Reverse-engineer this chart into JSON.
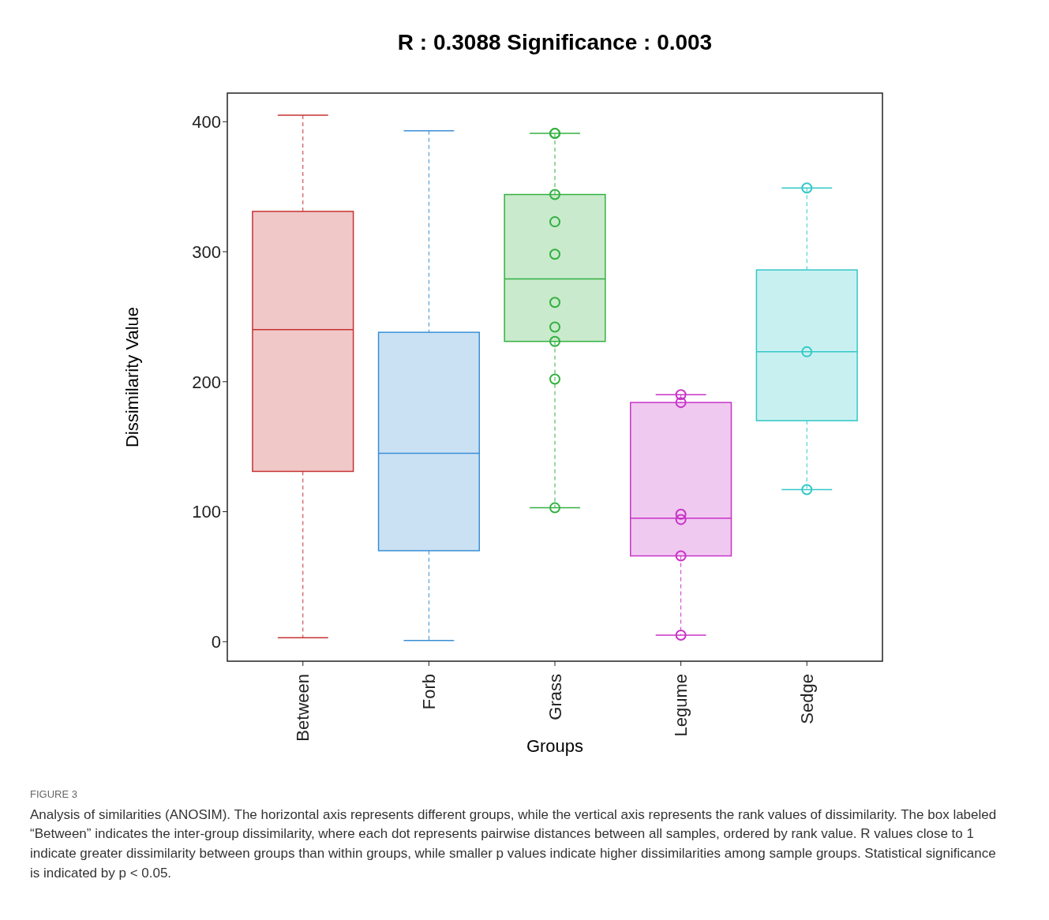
{
  "chart_data": {
    "type": "box",
    "title": "R : 0.3088  Significance : 0.003",
    "xlabel": "Groups",
    "ylabel": "Dissimilarity Value",
    "categories": [
      "Between",
      "Forb",
      "Grass",
      "Legume",
      "Sedge"
    ],
    "ylim": [
      -15,
      422
    ],
    "yticks": [
      0,
      100,
      200,
      300,
      400
    ],
    "line_style": "dashed",
    "series": [
      {
        "colors": [
          "#c83232",
          "#3a8fd6",
          "#33b040",
          "#c833c8",
          "#33c8c8"
        ],
        "boxes": [
          {
            "low": 3,
            "q1": 131,
            "median": 240,
            "q3": 331,
            "high": 405
          },
          {
            "low": 1,
            "q1": 70,
            "median": 145,
            "q3": 238,
            "high": 393
          },
          {
            "low": 103,
            "q1": 231,
            "median": 279,
            "q3": 344,
            "high": 391
          },
          {
            "low": 5,
            "q1": 66,
            "median": 95,
            "q3": 184,
            "high": 190
          },
          {
            "low": 117,
            "q1": 170,
            "median": 223,
            "q3": 286,
            "high": 349
          }
        ]
      },
      {
        "type": "scatter",
        "color": "#33b040",
        "marker": "circle",
        "x": [
          "Grass",
          "Grass",
          "Grass",
          "Grass",
          "Grass",
          "Grass",
          "Grass",
          "Grass",
          "Grass",
          "Grass"
        ],
        "values": [
          391,
          391,
          344,
          323,
          298,
          261,
          242,
          231,
          202,
          103
        ]
      },
      {
        "type": "scatter",
        "color": "#c833c8",
        "marker": "circle",
        "x": [
          "Legume",
          "Legume",
          "Legume",
          "Legume",
          "Legume",
          "Legume"
        ],
        "values": [
          190,
          184,
          98,
          94,
          66,
          5
        ]
      },
      {
        "type": "scatter",
        "color": "#33c8c8",
        "marker": "circle",
        "x": [
          "Sedge",
          "Sedge",
          "Sedge"
        ],
        "values": [
          349,
          223,
          117
        ]
      }
    ],
    "annotations": [
      "FIGURE 3",
      "Analysis of similarities (ANOSIM). The horizontal axis represents different groups, while the vertical axis represents the rank values of dissimilarity. The box labeled “Between” indicates the inter-group dissimilarity, where each dot represents pairwise distances between all samples, ordered by rank value. R values close to 1 indicate greater dissimilarity between groups than within groups, while smaller p values indicate higher dissimilarities among sample groups. Statistical significance is indicated by p < 0.05."
    ]
  }
}
